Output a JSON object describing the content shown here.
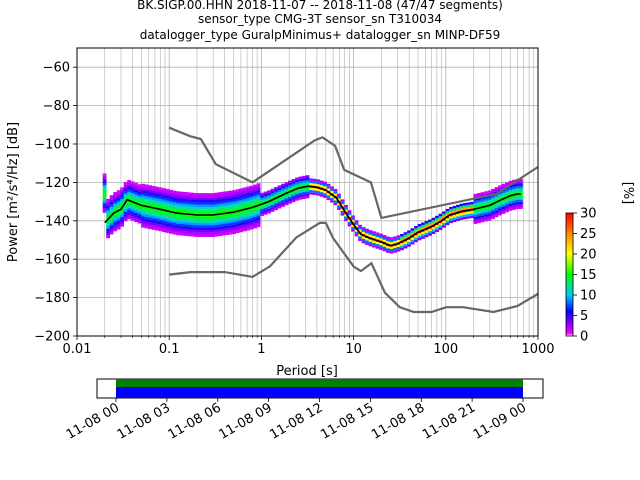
{
  "title": {
    "line1": "BK.SIGP.00.HHN   2018-11-07 -- 2018-11-08  (47/47 segments)",
    "line2": "sensor_type CMG-3T sensor_sn T310034",
    "line3": "datalogger_type GuralpMinimus+ datalogger_sn MINP-DF59"
  },
  "chart_data": [
    {
      "type": "heatmap",
      "subtype": "probabilistic-power-spectral-density",
      "xlabel": "Period [s]",
      "ylabel": "Power [m²/s⁴/Hz] [dB]",
      "xscale": "log",
      "xlim": [
        0.01,
        1000
      ],
      "ylim": [
        -200,
        -50
      ],
      "x_ticks": [
        "0.01",
        "0.1",
        "1",
        "10",
        "100",
        "1000"
      ],
      "y_ticks": [
        "−60",
        "−80",
        "−100",
        "−120",
        "−140",
        "−160",
        "−180",
        "−200"
      ],
      "grid": true,
      "colorbar": {
        "label": "[%]",
        "range": [
          0,
          30
        ],
        "ticks": [
          "0",
          "5",
          "10",
          "15",
          "20",
          "25",
          "30"
        ],
        "colormap": "pqlx"
      },
      "series": [
        {
          "name": "NHNM",
          "color": "#666666",
          "x": [
            0.1,
            0.17,
            0.22,
            0.32,
            0.8,
            3.8,
            4.6,
            6.3,
            7.9,
            15.4,
            20,
            354.8,
            1000
          ],
          "y": [
            -91.5,
            -96,
            -97.4,
            -110.5,
            -120,
            -98,
            -96.5,
            -101,
            -113.5,
            -120,
            -138.5,
            -126,
            -112
          ]
        },
        {
          "name": "NLNM",
          "color": "#666666",
          "x": [
            0.1,
            0.17,
            0.4,
            0.8,
            1.24,
            2.4,
            4.3,
            5,
            6,
            10,
            12,
            15.6,
            21.9,
            31.6,
            45,
            70,
            101,
            154,
            328,
            600,
            1000
          ],
          "y": [
            -168,
            -166.7,
            -166.7,
            -169.2,
            -163.7,
            -148.6,
            -141.1,
            -141.1,
            -149,
            -163.8,
            -166.2,
            -162.1,
            -177.5,
            -185,
            -187.5,
            -187.5,
            -185,
            -185,
            -187.5,
            -184.4,
            -178
          ]
        },
        {
          "name": "mode",
          "color": "#000000",
          "x": [
            0.02,
            0.025,
            0.03,
            0.035,
            0.05,
            0.08,
            0.12,
            0.2,
            0.3,
            0.5,
            0.8,
            1.2,
            1.8,
            2.5,
            3.2,
            4.0,
            5.0,
            6.5,
            8,
            10,
            12,
            15,
            20,
            25,
            30,
            40,
            50,
            70,
            90,
            110,
            150,
            200,
            300,
            400,
            500,
            600,
            650
          ],
          "y": [
            -141,
            -136,
            -134,
            -129,
            -132,
            -134,
            -136,
            -137,
            -137,
            -135.5,
            -133,
            -130,
            -126,
            -123,
            -122,
            -122.5,
            -124,
            -128,
            -135,
            -142,
            -147,
            -149,
            -151,
            -153,
            -152,
            -149,
            -146,
            -143,
            -140,
            -137,
            -135,
            -134,
            -132,
            -129,
            -127,
            -126,
            -126
          ]
        }
      ]
    },
    {
      "type": "bar",
      "subtype": "data-coverage-timeline",
      "x_ticks": [
        "11-08 00",
        "11-08 03",
        "11-08 06",
        "11-08 09",
        "11-08 12",
        "11-08 15",
        "11-08 18",
        "11-08 21",
        "11-09 00"
      ],
      "tracks": [
        {
          "name": "data availability",
          "color": "#008000",
          "start": "11-08 00",
          "end": "11-09 00"
        },
        {
          "name": "psd segments",
          "color": "#0000ff",
          "start": "11-08 00",
          "end": "11-09 00"
        }
      ]
    }
  ]
}
